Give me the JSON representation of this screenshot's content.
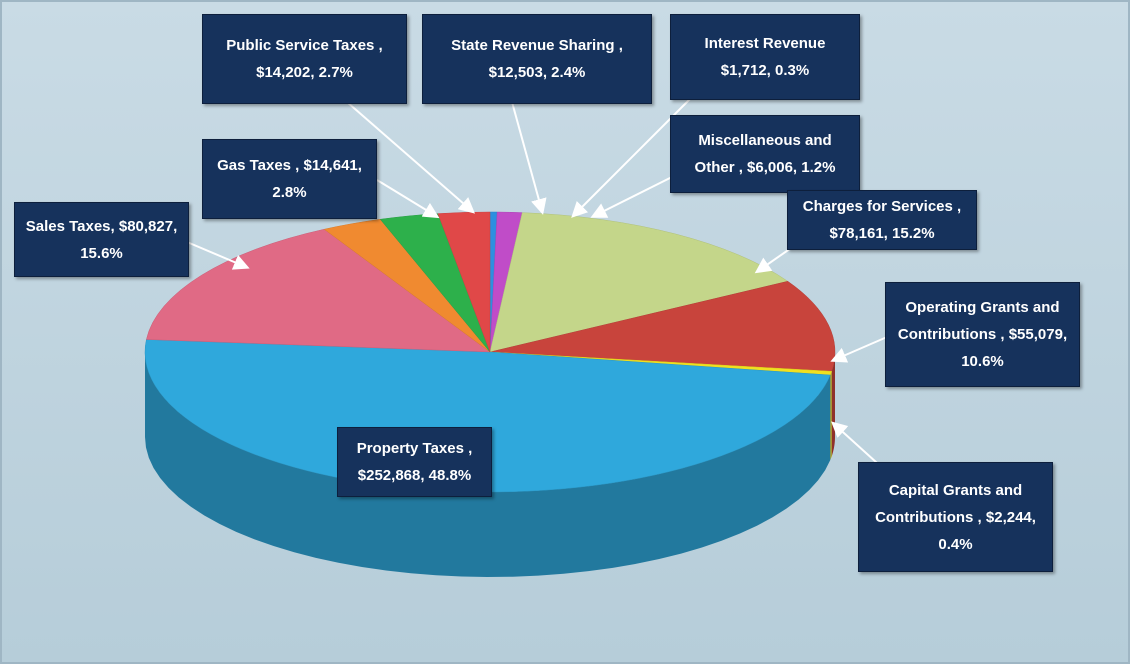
{
  "chart_data": {
    "type": "pie",
    "categories": [
      "Interest Revenue",
      "Miscellaneous and Other ,",
      "Charges for Services ,",
      "Operating Grants and Contributions ,",
      "Capital Grants and Contributions ,",
      "Property Taxes ,",
      "Sales Taxes,",
      "Gas Taxes ,",
      "Public Service Taxes ,",
      "State Revenue Sharing ,"
    ],
    "values": [
      1712,
      6006,
      78161,
      55079,
      2244,
      252868,
      80827,
      14641,
      14202,
      12503
    ],
    "value_labels": [
      "$1,712, 0.3%",
      "$6,006, 1.2%",
      "$78,161, 15.2%",
      "$55,079, 10.6%",
      "$2,244, 0.4%",
      "$252,868, 48.8%",
      "$80,827, 15.6%",
      "$14,641, 2.8%",
      "$14,202, 2.7%",
      "$12,503, 2.4%"
    ],
    "colors": [
      "#2d8fe0",
      "#c04cc8",
      "#c4d68a",
      "#c8443c",
      "#f0e020",
      "#2fa8dc",
      "#e06a85",
      "#f08a30",
      "#2db04b",
      "#e04848"
    ]
  }
}
